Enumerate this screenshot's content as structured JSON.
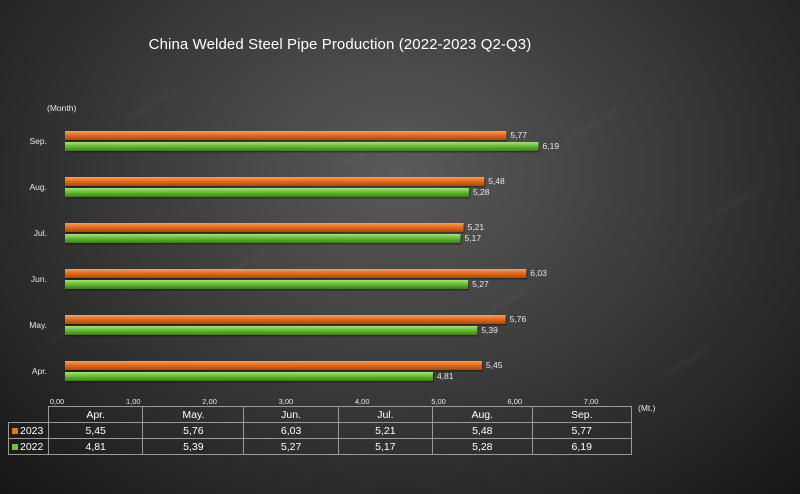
{
  "chart_data": {
    "type": "bar",
    "orientation": "horizontal",
    "title": "China Welded Steel Pipe Production (2022-2023 Q2-Q3)",
    "ylabel": "(Month)",
    "xlabel": "(Mt.)",
    "categories": [
      "Apr.",
      "May.",
      "Jun.",
      "Jul.",
      "Aug.",
      "Sep."
    ],
    "x_ticks": [
      "0,00",
      "1,00",
      "2,00",
      "3,00",
      "4,00",
      "5,00",
      "6,00",
      "7,00"
    ],
    "xlim": [
      0,
      7
    ],
    "series": [
      {
        "name": "2023",
        "color": "#e8731c",
        "values": [
          5.45,
          5.76,
          6.03,
          5.21,
          5.48,
          5.77
        ],
        "labels": [
          "5,45",
          "5,76",
          "6,03",
          "5,21",
          "5,48",
          "5,77"
        ]
      },
      {
        "name": "2022",
        "color": "#6fc23a",
        "values": [
          4.81,
          5.39,
          5.27,
          5.17,
          5.28,
          6.19
        ],
        "labels": [
          "4,81",
          "5,39",
          "5,27",
          "5,17",
          "5,28",
          "6,19"
        ]
      }
    ],
    "grid": false,
    "legend": "data table below chart"
  }
}
